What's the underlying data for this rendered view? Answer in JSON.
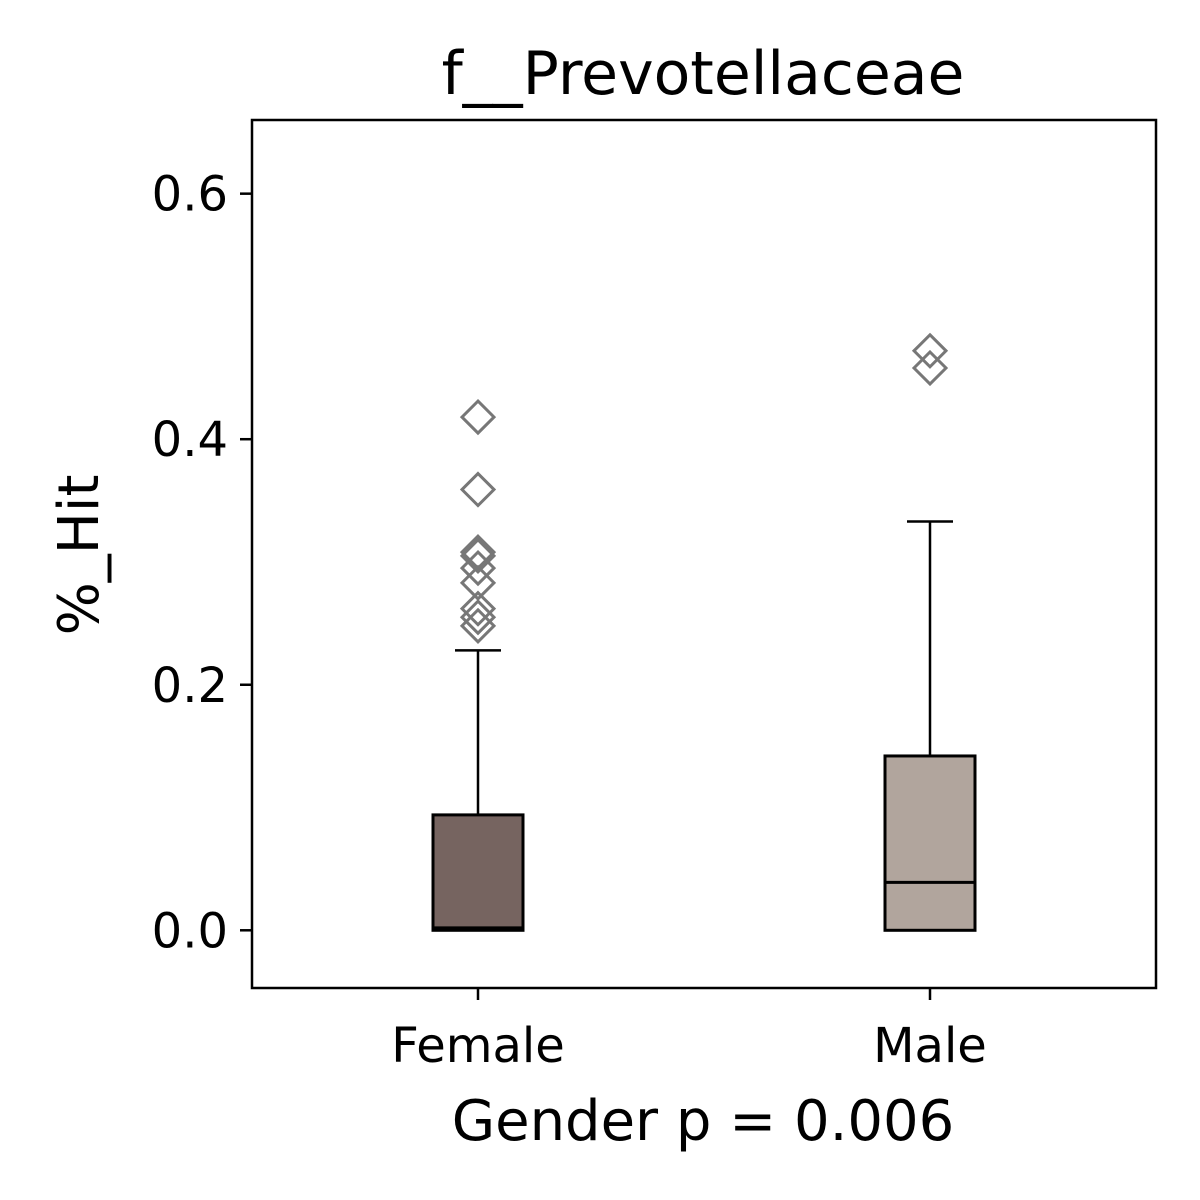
{
  "chart_data": {
    "type": "box",
    "title": "f__Prevotellaceae",
    "xlabel": "Gender p = 0.006",
    "ylabel": "%_Hit",
    "ylim": [
      -0.047,
      0.66
    ],
    "yticks": [
      0.0,
      0.2,
      0.4,
      0.6
    ],
    "ytick_labels": [
      "0.0",
      "0.2",
      "0.4",
      "0.6"
    ],
    "grid": false,
    "categories": [
      "Female",
      "Male"
    ],
    "boxes": [
      {
        "name": "Female",
        "color": "#766460",
        "whisker_low": 0.0,
        "q1": 0.0,
        "median": 0.002,
        "q3": 0.094,
        "whisker_high": 0.228,
        "outliers": [
          0.418,
          0.359,
          0.308,
          0.305,
          0.295,
          0.283,
          0.262,
          0.255,
          0.248
        ]
      },
      {
        "name": "Male",
        "color": "#b1a59d",
        "whisker_low": 0.0,
        "q1": 0.0,
        "median": 0.039,
        "q3": 0.142,
        "whisker_high": 0.333,
        "outliers": [
          0.472,
          0.458
        ]
      }
    ],
    "outlier_marker": "diamond",
    "outlier_color": "#777777"
  }
}
